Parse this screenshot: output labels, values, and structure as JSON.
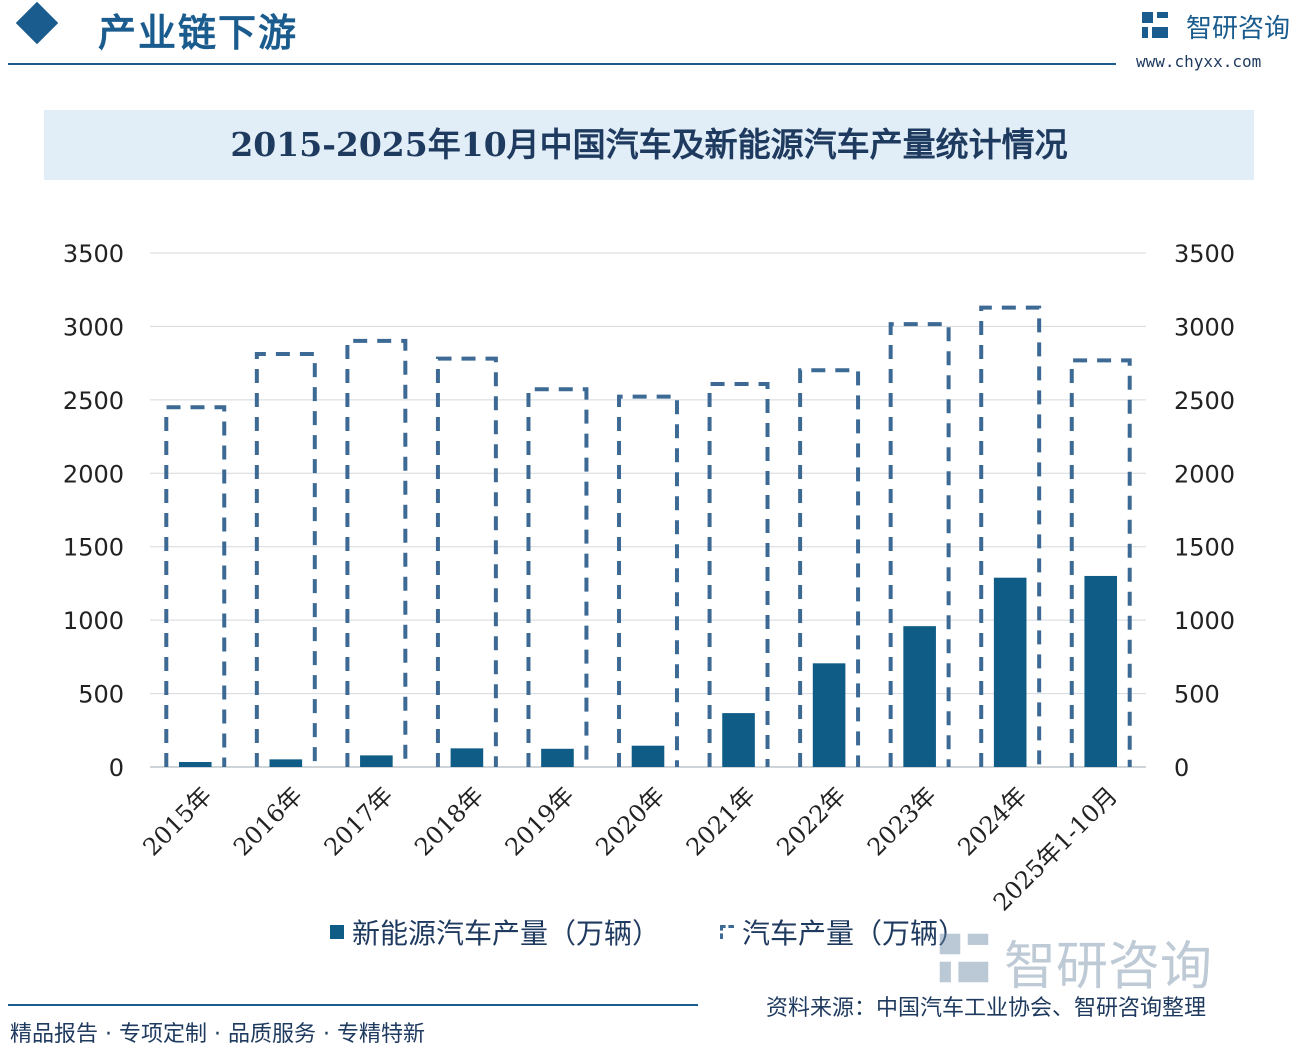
{
  "header": {
    "section_title": "产业链下游",
    "brand_name": "智研咨询",
    "brand_url": "www.chyxx.com"
  },
  "chart_data": {
    "type": "bar",
    "title": "2015-2025年10月中国汽车及新能源汽车产量统计情况",
    "categories": [
      "2015年",
      "2016年",
      "2017年",
      "2018年",
      "2019年",
      "2020年",
      "2021年",
      "2022年",
      "2023年",
      "2024年",
      "2025年1-10月"
    ],
    "series": [
      {
        "name": "新能源汽车产量（万辆）",
        "style": "solid",
        "color": "#0f5c86",
        "values": [
          34,
          52,
          79,
          127,
          124,
          145,
          367,
          706,
          959,
          1289,
          1301
        ]
      },
      {
        "name": "汽车产量（万辆）",
        "style": "dashed-outline",
        "color": "#3d6a94",
        "values": [
          2450,
          2812,
          2902,
          2781,
          2572,
          2522,
          2608,
          2702,
          3016,
          3128,
          2769
        ]
      }
    ],
    "ylim": [
      0,
      3500
    ],
    "yticks": [
      "0",
      "500",
      "1000",
      "1500",
      "2000",
      "2500",
      "3000",
      "3500"
    ],
    "y2ticks": [
      "0",
      "500",
      "1000",
      "1500",
      "2000",
      "2500",
      "3000",
      "3500"
    ],
    "grid": true,
    "legend_position": "bottom"
  },
  "footer": {
    "left": "精品报告 · 专项定制 · 品质服务 · 专精特新",
    "source": "资料来源：中国汽车工业协会、智研咨询整理"
  }
}
